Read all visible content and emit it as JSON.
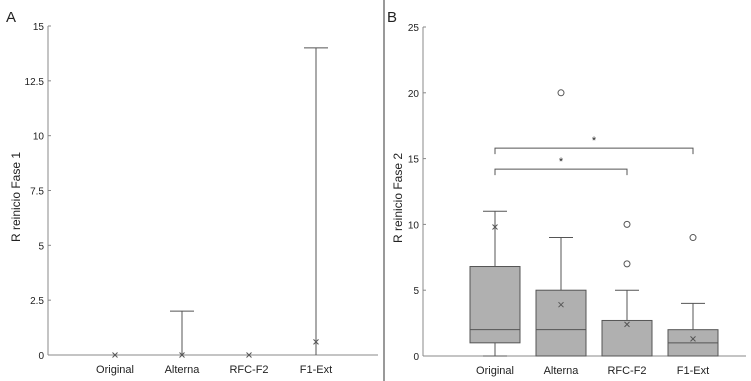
{
  "chart_data": [
    {
      "panel_label": "A",
      "type": "box",
      "ylabel": "R reinicio Fase 1",
      "xlabel": "",
      "categories": [
        "Original",
        "Alterna",
        "RFC-F2",
        "F1-Ext"
      ],
      "ylim": [
        0,
        15
      ],
      "yticks": [
        "0",
        "2.5",
        "5",
        "7.5",
        "10",
        "12.5",
        "15"
      ],
      "boxes": [
        {
          "category": "Original",
          "min": 0,
          "q1": 0,
          "median": 0,
          "q3": 0,
          "max": 0,
          "mean": 0,
          "outliers": []
        },
        {
          "category": "Alterna",
          "min": 0,
          "q1": 0,
          "median": 0,
          "q3": 0,
          "max": 2,
          "mean": 0,
          "outliers": []
        },
        {
          "category": "RFC-F2",
          "min": 0,
          "q1": 0,
          "median": 0,
          "q3": 0,
          "max": 0,
          "mean": 0,
          "outliers": []
        },
        {
          "category": "F1-Ext",
          "min": 0,
          "q1": 0,
          "median": 0,
          "q3": 0,
          "max": 14,
          "mean": 0.6,
          "outliers": []
        }
      ]
    },
    {
      "panel_label": "B",
      "type": "box",
      "ylabel": "R reinicio Fase 2",
      "xlabel": "",
      "categories": [
        "Original",
        "Alterna",
        "RFC-F2",
        "F1-Ext"
      ],
      "ylim": [
        0,
        25
      ],
      "yticks": [
        "0",
        "5",
        "10",
        "15",
        "20",
        "25"
      ],
      "boxes": [
        {
          "category": "Original",
          "min": 0,
          "q1": 1,
          "median": 2,
          "q3": 6.8,
          "max": 11,
          "mean": 9.8,
          "outliers": []
        },
        {
          "category": "Alterna",
          "min": 0,
          "q1": 0,
          "median": 2,
          "q3": 5,
          "max": 9,
          "mean": 3.9,
          "outliers": [
            20
          ]
        },
        {
          "category": "RFC-F2",
          "min": 0,
          "q1": 0,
          "median": 0,
          "q3": 2.7,
          "max": 5,
          "mean": 2.4,
          "outliers": [
            7,
            10
          ]
        },
        {
          "category": "F1-Ext",
          "min": 0,
          "q1": 0,
          "median": 1,
          "q3": 2,
          "max": 4,
          "mean": 1.3,
          "outliers": [
            9
          ]
        }
      ],
      "significance": [
        {
          "from": "Original",
          "to": "RFC-F2",
          "y": 14.2,
          "label": "*"
        },
        {
          "from": "Original",
          "to": "F1-Ext",
          "y": 15.8,
          "label": "*"
        }
      ]
    }
  ],
  "colors": {
    "box_fill": "#b0b0b0",
    "line": "#555555",
    "axis": "#888888",
    "divider": "#333333"
  }
}
